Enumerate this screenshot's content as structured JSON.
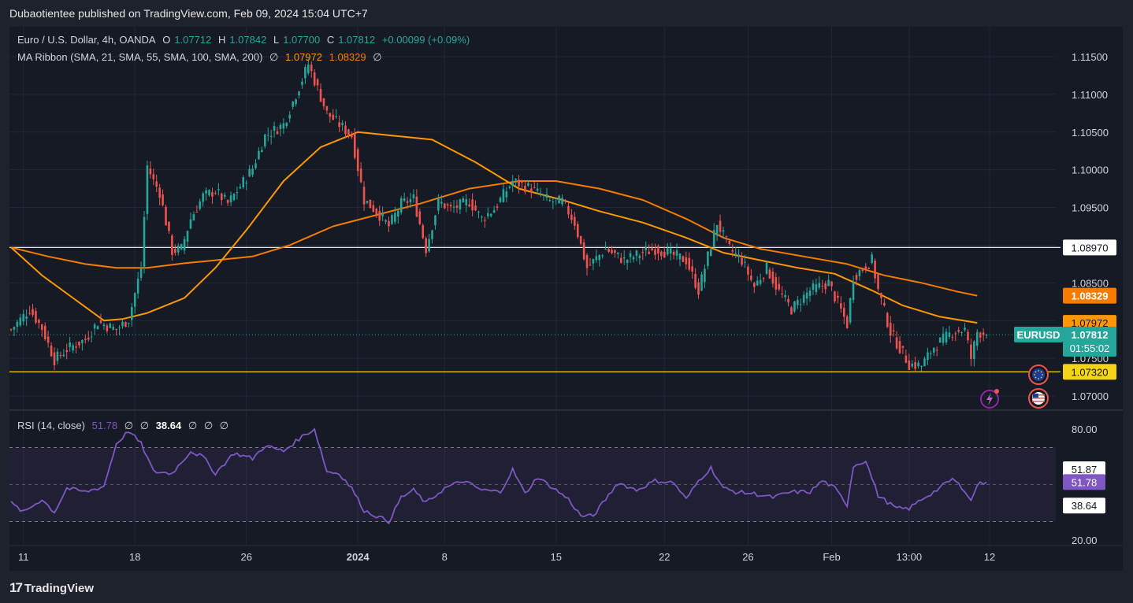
{
  "header": {
    "publisher_text": "Dubaotientee published on TradingView.com, Feb 09, 2024 15:04 UTC+7"
  },
  "legend": {
    "symbol": "Euro / U.S. Dollar, 4h, OANDA",
    "o_label": "O",
    "o": "1.07712",
    "h_label": "H",
    "h": "1.07842",
    "l_label": "L",
    "l": "1.07700",
    "c_label": "C",
    "c": "1.07812",
    "change": "+0.00099 (+0.09%)",
    "ma_label": "MA Ribbon (SMA, 21, SMA, 55, SMA, 100, SMA, 200)",
    "ma_null1": "∅",
    "ma_v1": "1.07972",
    "ma_v2": "1.08329",
    "ma_null2": "∅",
    "rsi_label": "RSI (14, close)",
    "rsi_v": "51.78",
    "rsi_null1": "∅",
    "rsi_null2": "∅",
    "rsi_v2": "38.64",
    "rsi_null3": "∅",
    "rsi_null4": "∅",
    "rsi_null5": "∅"
  },
  "price_labels": {
    "level_white": "1.08970",
    "ma_slow": "1.08329",
    "ma_fast": "1.07972",
    "symbol_tag": "EURUSD",
    "last_price": "1.07812",
    "countdown": "01:55:02",
    "level_yellow": "1.07320",
    "rsi_high": "51.87",
    "rsi_last": "51.78",
    "rsi_low": "38.64"
  },
  "footer": {
    "brand": "TradingView"
  },
  "colors": {
    "up": "#26a69a",
    "down": "#ef5350",
    "ma_fast": "#ff9800",
    "ma_slow": "#f57c00",
    "rsi": "#7e57c2",
    "level_yellow": "#f5d315",
    "level_white": "#ffffff"
  },
  "icons": [
    "eu-flag-icon",
    "us-flag-icon",
    "lightning-icon",
    "tradingview-logo-icon"
  ],
  "chart_data": [
    {
      "type": "candlestick",
      "symbol": "EURUSD",
      "timeframe": "4h",
      "y_ticks": [
        "1.11500",
        "1.11000",
        "1.10500",
        "1.10000",
        "1.09500",
        "1.09000",
        "1.08500",
        "1.08000",
        "1.07500",
        "1.07000"
      ],
      "ylim": [
        1.069,
        1.117
      ],
      "x_ticks": [
        "11",
        "18",
        "26",
        "2024",
        "8",
        "15",
        "22",
        "26",
        "Feb",
        "13:00",
        "12"
      ],
      "x_tick_index": [
        4,
        40,
        76,
        112,
        140,
        176,
        211,
        238,
        265,
        290,
        316
      ],
      "bars_count": 316,
      "path_points": [
        [
          0,
          1.0788
        ],
        [
          6,
          1.0815
        ],
        [
          10,
          1.079
        ],
        [
          14,
          1.0748
        ],
        [
          18,
          1.0762
        ],
        [
          24,
          1.0775
        ],
        [
          28,
          1.0798
        ],
        [
          34,
          1.0788
        ],
        [
          38,
          1.0802
        ],
        [
          42,
          1.087
        ],
        [
          44,
          1.1005
        ],
        [
          46,
          1.0985
        ],
        [
          48,
          1.097
        ],
        [
          52,
          1.0892
        ],
        [
          55,
          1.0895
        ],
        [
          58,
          1.0935
        ],
        [
          62,
          1.0965
        ],
        [
          66,
          1.0972
        ],
        [
          70,
          1.0955
        ],
        [
          74,
          1.0978
        ],
        [
          78,
          1.1002
        ],
        [
          82,
          1.1045
        ],
        [
          88,
          1.106
        ],
        [
          92,
          1.11
        ],
        [
          96,
          1.114
        ],
        [
          102,
          1.1075
        ],
        [
          110,
          1.1045
        ],
        [
          114,
          1.096
        ],
        [
          118,
          1.0945
        ],
        [
          122,
          1.0925
        ],
        [
          126,
          1.0955
        ],
        [
          130,
          1.0962
        ],
        [
          134,
          1.0895
        ],
        [
          138,
          1.0958
        ],
        [
          142,
          1.0948
        ],
        [
          148,
          1.0958
        ],
        [
          152,
          1.0935
        ],
        [
          156,
          1.0948
        ],
        [
          162,
          1.0985
        ],
        [
          168,
          1.0975
        ],
        [
          174,
          1.0958
        ],
        [
          178,
          1.0958
        ],
        [
          182,
          1.093
        ],
        [
          186,
          1.087
        ],
        [
          192,
          1.0895
        ],
        [
          198,
          1.088
        ],
        [
          204,
          1.089
        ],
        [
          208,
          1.0895
        ],
        [
          212,
          1.089
        ],
        [
          218,
          1.088
        ],
        [
          222,
          1.084
        ],
        [
          228,
          1.093
        ],
        [
          232,
          1.0895
        ],
        [
          236,
          1.088
        ],
        [
          240,
          1.0845
        ],
        [
          244,
          1.087
        ],
        [
          248,
          1.0838
        ],
        [
          252,
          1.0815
        ],
        [
          258,
          1.084
        ],
        [
          264,
          1.085
        ],
        [
          270,
          1.0795
        ],
        [
          272,
          1.0858
        ],
        [
          278,
          1.088
        ],
        [
          280,
          1.084
        ],
        [
          284,
          1.0785
        ],
        [
          290,
          1.0742
        ],
        [
          294,
          1.074
        ],
        [
          298,
          1.0765
        ],
        [
          304,
          1.0785
        ],
        [
          308,
          1.0788
        ],
        [
          310,
          1.075
        ],
        [
          312,
          1.0785
        ],
        [
          316,
          1.07812
        ]
      ],
      "sma_21_points": [
        [
          0,
          1.0897
        ],
        [
          10,
          1.086
        ],
        [
          20,
          1.083
        ],
        [
          30,
          1.08
        ],
        [
          36,
          1.0802
        ],
        [
          44,
          1.081
        ],
        [
          56,
          1.083
        ],
        [
          66,
          1.087
        ],
        [
          76,
          1.092
        ],
        [
          88,
          1.0985
        ],
        [
          100,
          1.103
        ],
        [
          112,
          1.105
        ],
        [
          124,
          1.1045
        ],
        [
          136,
          1.104
        ],
        [
          150,
          1.101
        ],
        [
          164,
          1.0975
        ],
        [
          178,
          1.096
        ],
        [
          190,
          1.0945
        ],
        [
          204,
          1.093
        ],
        [
          218,
          1.091
        ],
        [
          230,
          1.089
        ],
        [
          242,
          1.088
        ],
        [
          254,
          1.087
        ],
        [
          266,
          1.0862
        ],
        [
          278,
          1.084
        ],
        [
          288,
          1.082
        ],
        [
          300,
          1.0805
        ],
        [
          312,
          1.0797
        ]
      ],
      "sma_55_points": [
        [
          0,
          1.0897
        ],
        [
          12,
          1.0885
        ],
        [
          24,
          1.0875
        ],
        [
          34,
          1.087
        ],
        [
          44,
          1.087
        ],
        [
          56,
          1.0876
        ],
        [
          66,
          1.088
        ],
        [
          78,
          1.0885
        ],
        [
          90,
          1.09
        ],
        [
          104,
          1.0925
        ],
        [
          118,
          1.094
        ],
        [
          132,
          1.0955
        ],
        [
          148,
          1.0975
        ],
        [
          164,
          1.0985
        ],
        [
          176,
          1.0985
        ],
        [
          190,
          1.0975
        ],
        [
          204,
          1.096
        ],
        [
          218,
          1.0935
        ],
        [
          230,
          1.091
        ],
        [
          242,
          1.0895
        ],
        [
          256,
          1.0885
        ],
        [
          270,
          1.0875
        ],
        [
          282,
          1.086
        ],
        [
          294,
          1.085
        ],
        [
          306,
          1.0838
        ],
        [
          312,
          1.0833
        ]
      ],
      "horizontal_levels": [
        1.0897,
        1.0732
      ],
      "last_price": 1.07812
    },
    {
      "type": "line",
      "name": "RSI (14, close)",
      "ylim": [
        20,
        85
      ],
      "y_ticks": [
        "80.00",
        "20.00"
      ],
      "band": [
        70,
        30
      ],
      "mid_level": 51.87,
      "points": [
        [
          0,
          40
        ],
        [
          4,
          35
        ],
        [
          10,
          42
        ],
        [
          14,
          35
        ],
        [
          18,
          48
        ],
        [
          24,
          46
        ],
        [
          30,
          49
        ],
        [
          34,
          72
        ],
        [
          38,
          79
        ],
        [
          42,
          72
        ],
        [
          46,
          57
        ],
        [
          52,
          56
        ],
        [
          58,
          68
        ],
        [
          62,
          65
        ],
        [
          66,
          56
        ],
        [
          72,
          67
        ],
        [
          78,
          64
        ],
        [
          82,
          71
        ],
        [
          88,
          68
        ],
        [
          94,
          76
        ],
        [
          98,
          80
        ],
        [
          102,
          57
        ],
        [
          106,
          56
        ],
        [
          110,
          48
        ],
        [
          114,
          36
        ],
        [
          118,
          33
        ],
        [
          122,
          30
        ],
        [
          126,
          43
        ],
        [
          130,
          47
        ],
        [
          134,
          40
        ],
        [
          140,
          48
        ],
        [
          146,
          52
        ],
        [
          152,
          47
        ],
        [
          158,
          46
        ],
        [
          162,
          58
        ],
        [
          166,
          45
        ],
        [
          170,
          54
        ],
        [
          176,
          47
        ],
        [
          180,
          42
        ],
        [
          184,
          33
        ],
        [
          188,
          33
        ],
        [
          192,
          42
        ],
        [
          196,
          51
        ],
        [
          202,
          47
        ],
        [
          208,
          52
        ],
        [
          214,
          51
        ],
        [
          218,
          42
        ],
        [
          222,
          52
        ],
        [
          226,
          59
        ],
        [
          230,
          48
        ],
        [
          234,
          46
        ],
        [
          240,
          45
        ],
        [
          246,
          43
        ],
        [
          252,
          46
        ],
        [
          258,
          46
        ],
        [
          262,
          52
        ],
        [
          266,
          48
        ],
        [
          270,
          39
        ],
        [
          272,
          60
        ],
        [
          276,
          63
        ],
        [
          280,
          44
        ],
        [
          286,
          37
        ],
        [
          290,
          37
        ],
        [
          294,
          42
        ],
        [
          298,
          46
        ],
        [
          304,
          53
        ],
        [
          308,
          47
        ],
        [
          310,
          41
        ],
        [
          312,
          50
        ],
        [
          316,
          51.78
        ]
      ]
    }
  ]
}
